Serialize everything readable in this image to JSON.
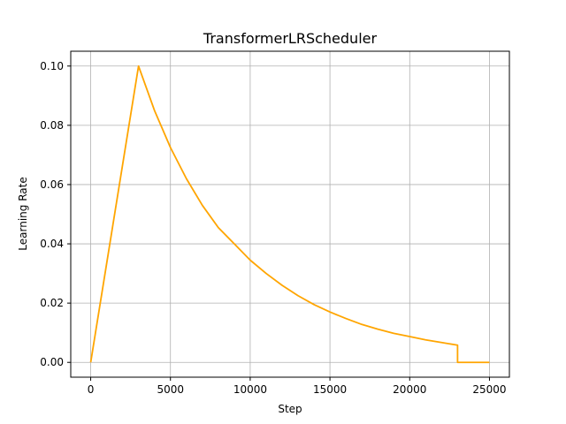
{
  "chart_data": {
    "type": "line",
    "title": "TransformerLRScheduler",
    "xlabel": "Step",
    "ylabel": "Learning Rate",
    "xlim": [
      -1250,
      26250
    ],
    "ylim": [
      -0.005,
      0.105
    ],
    "xticks": [
      0,
      5000,
      10000,
      15000,
      20000,
      25000
    ],
    "xtick_labels": [
      "0",
      "5000",
      "10000",
      "15000",
      "20000",
      "25000"
    ],
    "yticks": [
      0.0,
      0.02,
      0.04,
      0.06,
      0.08,
      0.1
    ],
    "ytick_labels": [
      "0.00",
      "0.02",
      "0.04",
      "0.06",
      "0.08",
      "0.10"
    ],
    "grid": true,
    "legend": false,
    "series": [
      {
        "color": "#ffa500",
        "x": [
          0,
          3000,
          4000,
          5000,
          6000,
          7000,
          8000,
          9000,
          10000,
          11000,
          12000,
          13000,
          14000,
          15000,
          16000,
          17000,
          18000,
          19000,
          20000,
          21000,
          22000,
          23000,
          23000,
          25000
        ],
        "y": [
          0.0,
          0.1,
          0.085,
          0.0725,
          0.062,
          0.053,
          0.0455,
          0.04,
          0.0345,
          0.03,
          0.026,
          0.0225,
          0.0195,
          0.017,
          0.0148,
          0.0128,
          0.0112,
          0.0098,
          0.0087,
          0.0076,
          0.0067,
          0.0058,
          0.0,
          0.0
        ]
      }
    ]
  }
}
